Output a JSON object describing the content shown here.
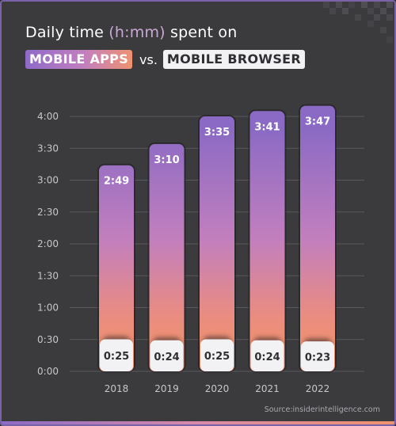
{
  "title": {
    "prefix": "Daily time",
    "unit": "(h:mm)",
    "suffix": "spent on",
    "apps_label": "MOBILE APPS",
    "vs": "vs.",
    "browser_label": "MOBILE BROWSER"
  },
  "source": "Source:insiderintelligence.com",
  "colors": {
    "background": "#3b3a3d",
    "apps_top": "#8f6ac8",
    "apps_mid": "#c27fbe",
    "apps_bottom": "#ef9270",
    "browser": "#f2f2f4",
    "grid": "#5a595d",
    "tick_text": "#c7c6cb"
  },
  "chart_data": {
    "type": "bar",
    "stacked": true,
    "categories": [
      "2018",
      "2019",
      "2020",
      "2021",
      "2022"
    ],
    "series": [
      {
        "name": "MOBILE BROWSER",
        "values": [
          25,
          24,
          25,
          24,
          23
        ],
        "labels": [
          "0:25",
          "0:24",
          "0:25",
          "0:24",
          "0:23"
        ]
      },
      {
        "name": "MOBILE APPS",
        "values": [
          169,
          190,
          215,
          221,
          227
        ],
        "labels": [
          "2:49",
          "3:10",
          "3:35",
          "3:41",
          "3:47"
        ]
      }
    ],
    "ytick_values": [
      0,
      30,
      60,
      90,
      120,
      150,
      180,
      210,
      240
    ],
    "ytick_labels": [
      "0:00",
      "0:30",
      "1:00",
      "1:30",
      "2:00",
      "2:30",
      "3:00",
      "3:30",
      "4:00"
    ],
    "ylim": [
      0,
      240
    ],
    "y_unit": "minutes",
    "grid": true
  }
}
